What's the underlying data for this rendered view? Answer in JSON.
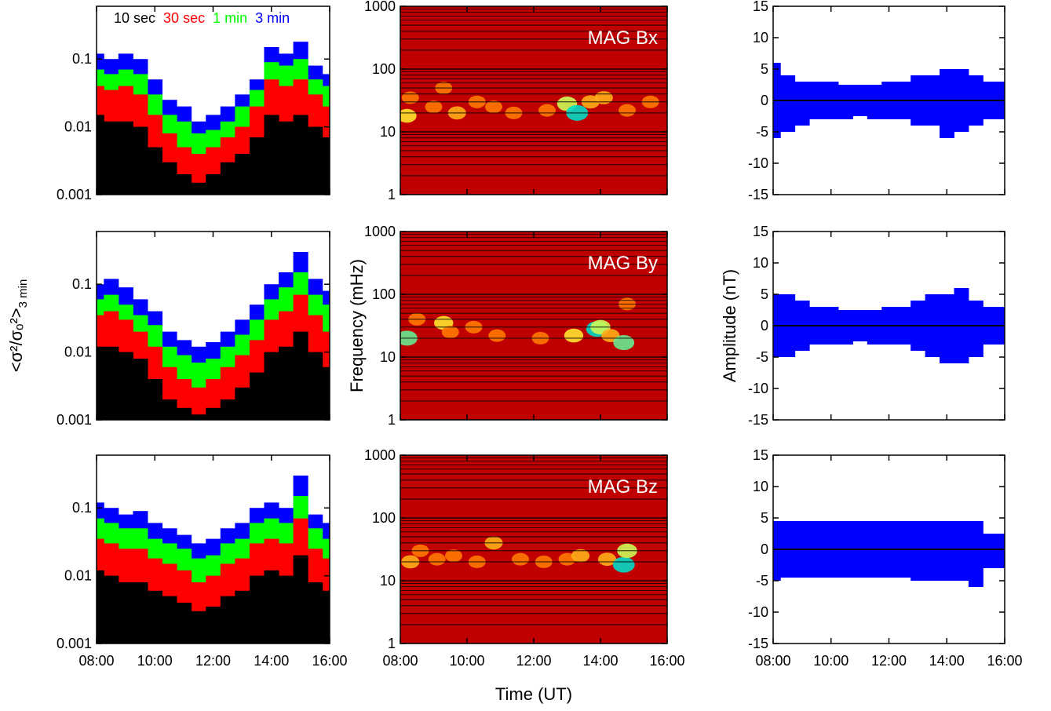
{
  "chart_data": [
    {
      "type": "bar",
      "ylog": true,
      "xlim": [
        8,
        16
      ],
      "ylim": [
        0.001,
        0.6
      ],
      "yticks": [
        0.001,
        0.01,
        0.1
      ],
      "x": [
        8,
        8.5,
        9,
        9.5,
        10,
        10.5,
        11,
        11.5,
        12,
        12.5,
        13,
        13.5,
        14,
        14.5,
        15,
        15.5,
        16
      ],
      "series": [
        {
          "name": "10 sec",
          "color": "#000000",
          "values": [
            0.015,
            0.012,
            0.012,
            0.01,
            0.005,
            0.003,
            0.002,
            0.0015,
            0.002,
            0.003,
            0.004,
            0.007,
            0.015,
            0.012,
            0.015,
            0.01,
            0.007
          ]
        },
        {
          "name": "30 sec",
          "color": "#ff0000",
          "values": [
            0.04,
            0.035,
            0.04,
            0.03,
            0.015,
            0.008,
            0.005,
            0.004,
            0.005,
            0.007,
            0.01,
            0.02,
            0.05,
            0.04,
            0.05,
            0.03,
            0.02
          ]
        },
        {
          "name": "1 min",
          "color": "#00ff00",
          "values": [
            0.07,
            0.06,
            0.07,
            0.06,
            0.03,
            0.015,
            0.012,
            0.008,
            0.009,
            0.012,
            0.02,
            0.035,
            0.09,
            0.08,
            0.1,
            0.05,
            0.04
          ]
        },
        {
          "name": "3 min",
          "color": "#0000ff",
          "values": [
            0.12,
            0.1,
            0.12,
            0.1,
            0.05,
            0.025,
            0.02,
            0.012,
            0.015,
            0.02,
            0.03,
            0.05,
            0.15,
            0.12,
            0.18,
            0.08,
            0.06
          ]
        }
      ]
    },
    {
      "type": "heatmap",
      "ylog": true,
      "xlim": [
        8,
        16
      ],
      "ylim": [
        1,
        1000
      ],
      "yticks": [
        1,
        10,
        100,
        1000
      ],
      "grid": true,
      "background": "#c00000",
      "annotation": "MAG Bx",
      "x": [
        8.2,
        8.3,
        9.0,
        9.3,
        9.7,
        10.3,
        10.8,
        11.4,
        12.4,
        13.0,
        13.3,
        13.7,
        14.1,
        14.8,
        15.5
      ],
      "y": [
        18,
        35,
        25,
        50,
        20,
        30,
        25,
        20,
        22,
        28,
        20,
        30,
        35,
        22,
        30
      ],
      "values": [
        0.7,
        0.5,
        0.5,
        0.5,
        0.6,
        0.5,
        0.5,
        0.5,
        0.5,
        0.8,
        1.0,
        0.6,
        0.6,
        0.5,
        0.5
      ]
    },
    {
      "type": "range",
      "xlim": [
        8,
        16
      ],
      "ylim": [
        -15,
        15
      ],
      "yticks": [
        -15,
        -10,
        -5,
        0,
        5,
        10,
        15
      ],
      "color": "#0000ff",
      "x": [
        8,
        8.5,
        9,
        9.5,
        10,
        10.5,
        11,
        11.5,
        12,
        12.5,
        13,
        13.5,
        14,
        14.5,
        15,
        15.5,
        16
      ],
      "high": [
        6,
        4,
        3,
        3,
        3,
        2.5,
        2.5,
        2.5,
        3,
        3,
        4,
        4,
        5,
        5,
        4,
        3,
        3
      ],
      "low": [
        -6,
        -5,
        -4,
        -3,
        -3,
        -3,
        -2.5,
        -3,
        -3,
        -3,
        -4,
        -4,
        -6,
        -5,
        -4,
        -3,
        -3
      ]
    },
    {
      "type": "bar",
      "ylog": true,
      "xlim": [
        8,
        16
      ],
      "ylim": [
        0.001,
        0.6
      ],
      "yticks": [
        0.001,
        0.01,
        0.1
      ],
      "ylabel": "<σ²/σₒ²>",
      "ylabel_subscript": "3 min",
      "x": [
        8,
        8.5,
        9,
        9.5,
        10,
        10.5,
        11,
        11.5,
        12,
        12.5,
        13,
        13.5,
        14,
        14.5,
        15,
        15.5,
        16
      ],
      "series": [
        {
          "color": "#000000",
          "values": [
            0.012,
            0.012,
            0.01,
            0.008,
            0.004,
            0.002,
            0.0015,
            0.0012,
            0.0015,
            0.002,
            0.003,
            0.005,
            0.01,
            0.012,
            0.02,
            0.01,
            0.006
          ]
        },
        {
          "color": "#ff0000",
          "values": [
            0.035,
            0.04,
            0.03,
            0.02,
            0.012,
            0.006,
            0.004,
            0.003,
            0.004,
            0.006,
            0.009,
            0.015,
            0.03,
            0.04,
            0.07,
            0.035,
            0.02
          ]
        },
        {
          "color": "#00ff00",
          "values": [
            0.06,
            0.07,
            0.05,
            0.035,
            0.025,
            0.012,
            0.009,
            0.007,
            0.008,
            0.012,
            0.018,
            0.03,
            0.06,
            0.09,
            0.15,
            0.07,
            0.05
          ]
        },
        {
          "color": "#0000ff",
          "values": [
            0.1,
            0.12,
            0.09,
            0.06,
            0.04,
            0.02,
            0.015,
            0.012,
            0.014,
            0.02,
            0.03,
            0.05,
            0.1,
            0.15,
            0.3,
            0.12,
            0.08
          ]
        }
      ]
    },
    {
      "type": "heatmap",
      "ylog": true,
      "xlim": [
        8,
        16
      ],
      "ylim": [
        1,
        1000
      ],
      "yticks": [
        1,
        10,
        100,
        1000
      ],
      "grid": true,
      "background": "#c00000",
      "annotation": "MAG By",
      "ylabel": "Frequency (mHz)",
      "x": [
        8.2,
        8.5,
        9.3,
        9.5,
        10.2,
        10.9,
        12.2,
        13.2,
        13.9,
        14.0,
        14.3,
        14.7,
        14.8
      ],
      "y": [
        20,
        40,
        35,
        25,
        30,
        22,
        20,
        22,
        28,
        30,
        22,
        17,
        70
      ],
      "values": [
        0.9,
        0.5,
        0.7,
        0.5,
        0.5,
        0.5,
        0.5,
        0.7,
        1.0,
        0.8,
        0.6,
        0.9,
        0.5
      ]
    },
    {
      "type": "range",
      "xlim": [
        8,
        16
      ],
      "ylim": [
        -15,
        15
      ],
      "yticks": [
        -15,
        -10,
        -5,
        0,
        5,
        10,
        15
      ],
      "color": "#0000ff",
      "ylabel": "Amplitude (nT)",
      "x": [
        8,
        8.5,
        9,
        9.5,
        10,
        10.5,
        11,
        11.5,
        12,
        12.5,
        13,
        13.5,
        14,
        14.5,
        15,
        15.5,
        16
      ],
      "high": [
        5,
        5,
        4,
        3,
        3,
        2.5,
        2.5,
        2.5,
        3,
        3,
        4,
        5,
        5,
        6,
        4,
        3,
        3
      ],
      "low": [
        -5,
        -5,
        -4,
        -3,
        -3,
        -3,
        -2.5,
        -3,
        -3,
        -3,
        -4,
        -5,
        -6,
        -6,
        -5,
        -3,
        -3
      ]
    },
    {
      "type": "bar",
      "ylog": true,
      "xlim": [
        8,
        16
      ],
      "ylim": [
        0.001,
        0.6
      ],
      "yticks": [
        0.001,
        0.01,
        0.1
      ],
      "xticks": [
        {
          "value": 8,
          "label": "08:00"
        },
        {
          "value": 10,
          "label": "10:00"
        },
        {
          "value": 12,
          "label": "12:00"
        },
        {
          "value": 14,
          "label": "14:00"
        },
        {
          "value": 16,
          "label": "16:00"
        }
      ],
      "x": [
        8,
        8.5,
        9,
        9.5,
        10,
        10.5,
        11,
        11.5,
        12,
        12.5,
        13,
        13.5,
        14,
        14.5,
        15,
        15.5,
        16
      ],
      "series": [
        {
          "color": "#000000",
          "values": [
            0.012,
            0.01,
            0.008,
            0.008,
            0.006,
            0.005,
            0.004,
            0.003,
            0.0035,
            0.005,
            0.006,
            0.01,
            0.012,
            0.01,
            0.02,
            0.008,
            0.006
          ]
        },
        {
          "color": "#ff0000",
          "values": [
            0.035,
            0.03,
            0.025,
            0.025,
            0.018,
            0.015,
            0.012,
            0.008,
            0.01,
            0.015,
            0.018,
            0.03,
            0.035,
            0.03,
            0.07,
            0.025,
            0.018
          ]
        },
        {
          "color": "#00ff00",
          "values": [
            0.07,
            0.06,
            0.05,
            0.05,
            0.035,
            0.03,
            0.025,
            0.018,
            0.02,
            0.03,
            0.035,
            0.06,
            0.07,
            0.06,
            0.15,
            0.05,
            0.035
          ]
        },
        {
          "color": "#0000ff",
          "values": [
            0.12,
            0.1,
            0.08,
            0.09,
            0.06,
            0.05,
            0.04,
            0.03,
            0.035,
            0.05,
            0.06,
            0.1,
            0.12,
            0.1,
            0.3,
            0.08,
            0.06
          ]
        }
      ]
    },
    {
      "type": "heatmap",
      "ylog": true,
      "xlim": [
        8,
        16
      ],
      "ylim": [
        1,
        1000
      ],
      "yticks": [
        1,
        10,
        100,
        1000
      ],
      "grid": true,
      "background": "#c00000",
      "annotation": "MAG Bz",
      "xlabel": "Time (UT)",
      "xticks": [
        {
          "value": 8,
          "label": "08:00"
        },
        {
          "value": 10,
          "label": "10:00"
        },
        {
          "value": 12,
          "label": "12:00"
        },
        {
          "value": 14,
          "label": "14:00"
        },
        {
          "value": 16,
          "label": "16:00"
        }
      ],
      "x": [
        8.3,
        8.6,
        9.1,
        9.6,
        10.3,
        10.8,
        11.6,
        12.3,
        13.0,
        13.4,
        14.2,
        14.7,
        14.8
      ],
      "y": [
        20,
        30,
        22,
        25,
        20,
        40,
        22,
        20,
        22,
        25,
        22,
        18,
        30
      ],
      "values": [
        0.6,
        0.5,
        0.5,
        0.5,
        0.5,
        0.6,
        0.5,
        0.5,
        0.5,
        0.6,
        0.6,
        1.0,
        0.8
      ]
    },
    {
      "type": "range",
      "xlim": [
        8,
        16
      ],
      "ylim": [
        -15,
        15
      ],
      "yticks": [
        -15,
        -10,
        -5,
        0,
        5,
        10,
        15
      ],
      "color": "#0000ff",
      "xticks": [
        {
          "value": 8,
          "label": "08:00"
        },
        {
          "value": 10,
          "label": "10:00"
        },
        {
          "value": 12,
          "label": "12:00"
        },
        {
          "value": 14,
          "label": "14:00"
        },
        {
          "value": 16,
          "label": "16:00"
        }
      ],
      "x": [
        8,
        8.5,
        9,
        9.5,
        10,
        10.5,
        11,
        11.5,
        12,
        12.5,
        13,
        13.5,
        14,
        14.5,
        15,
        15.5,
        16
      ],
      "high": [
        4.5,
        4.5,
        4.5,
        4.5,
        4.5,
        4.5,
        4.5,
        4.5,
        4.5,
        4.5,
        4.5,
        4.5,
        4.5,
        4.5,
        4.5,
        2.5,
        2.5
      ],
      "low": [
        -5,
        -4.5,
        -4.5,
        -4.5,
        -4.5,
        -4.5,
        -4.5,
        -4.5,
        -4.5,
        -4.5,
        -5,
        -5,
        -5,
        -5,
        -6,
        -3,
        -3
      ]
    }
  ]
}
